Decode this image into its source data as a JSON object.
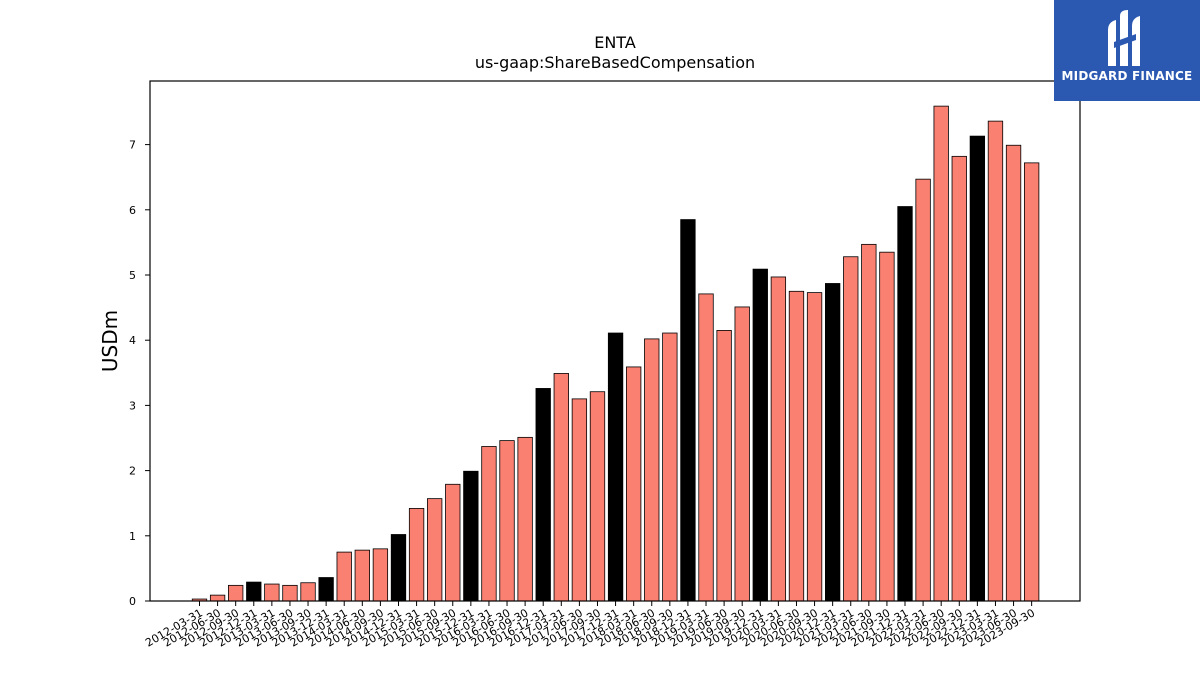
{
  "chart_data": {
    "type": "bar",
    "title": "ENTA",
    "subtitle": "us-gaap:ShareBasedCompensation",
    "xlabel": "",
    "ylabel": "USDm",
    "ylim": [
      0,
      8
    ],
    "yticks": [
      0,
      1,
      2,
      3,
      4,
      5,
      6,
      7
    ],
    "grid": false,
    "categories": [
      "2012-03-31",
      "2012-06-30",
      "2012-09-30",
      "2012-12-31",
      "2013-03-31",
      "2013-06-30",
      "2013-09-30",
      "2013-12-31",
      "2014-03-31",
      "2014-06-30",
      "2014-09-30",
      "2014-12-31",
      "2015-03-31",
      "2015-06-30",
      "2015-09-30",
      "2015-12-31",
      "2016-03-31",
      "2016-06-30",
      "2016-09-30",
      "2016-12-31",
      "2017-03-31",
      "2017-06-30",
      "2017-09-30",
      "2017-12-31",
      "2018-03-31",
      "2018-06-30",
      "2018-09-30",
      "2018-12-31",
      "2019-03-31",
      "2019-06-30",
      "2019-09-30",
      "2019-12-31",
      "2020-03-31",
      "2020-06-30",
      "2020-09-30",
      "2020-12-31",
      "2021-03-31",
      "2021-06-30",
      "2021-09-30",
      "2021-12-31",
      "2022-03-31",
      "2022-06-30",
      "2022-09-30",
      "2022-12-31",
      "2023-03-31",
      "2023-06-30",
      "2023-09-30"
    ],
    "values": [
      0.03,
      0.09,
      0.24,
      0.29,
      0.26,
      0.24,
      0.28,
      0.36,
      0.75,
      0.78,
      0.8,
      1.02,
      1.42,
      1.57,
      1.79,
      1.99,
      2.37,
      2.46,
      2.51,
      3.26,
      3.49,
      3.1,
      3.21,
      4.11,
      3.59,
      4.02,
      4.11,
      5.85,
      4.71,
      4.15,
      4.51,
      5.09,
      4.97,
      4.75,
      4.73,
      4.87,
      5.28,
      5.47,
      5.35,
      6.05,
      6.47,
      7.59,
      6.82,
      7.13,
      7.36,
      6.99,
      6.72
    ],
    "highlight": [
      false,
      false,
      false,
      true,
      false,
      false,
      false,
      true,
      false,
      false,
      false,
      true,
      false,
      false,
      false,
      true,
      false,
      false,
      false,
      true,
      false,
      false,
      false,
      true,
      false,
      false,
      false,
      true,
      false,
      false,
      false,
      true,
      false,
      false,
      false,
      true,
      false,
      false,
      false,
      true,
      false,
      false,
      false,
      true,
      false,
      false,
      false
    ],
    "colors": {
      "bar": "#fa8072",
      "highlight_bar": "#000000",
      "edge": "#000000",
      "axis": "#000000"
    }
  },
  "logo": {
    "text": "MIDGARD FINANCE",
    "background": "#2b58b1"
  }
}
